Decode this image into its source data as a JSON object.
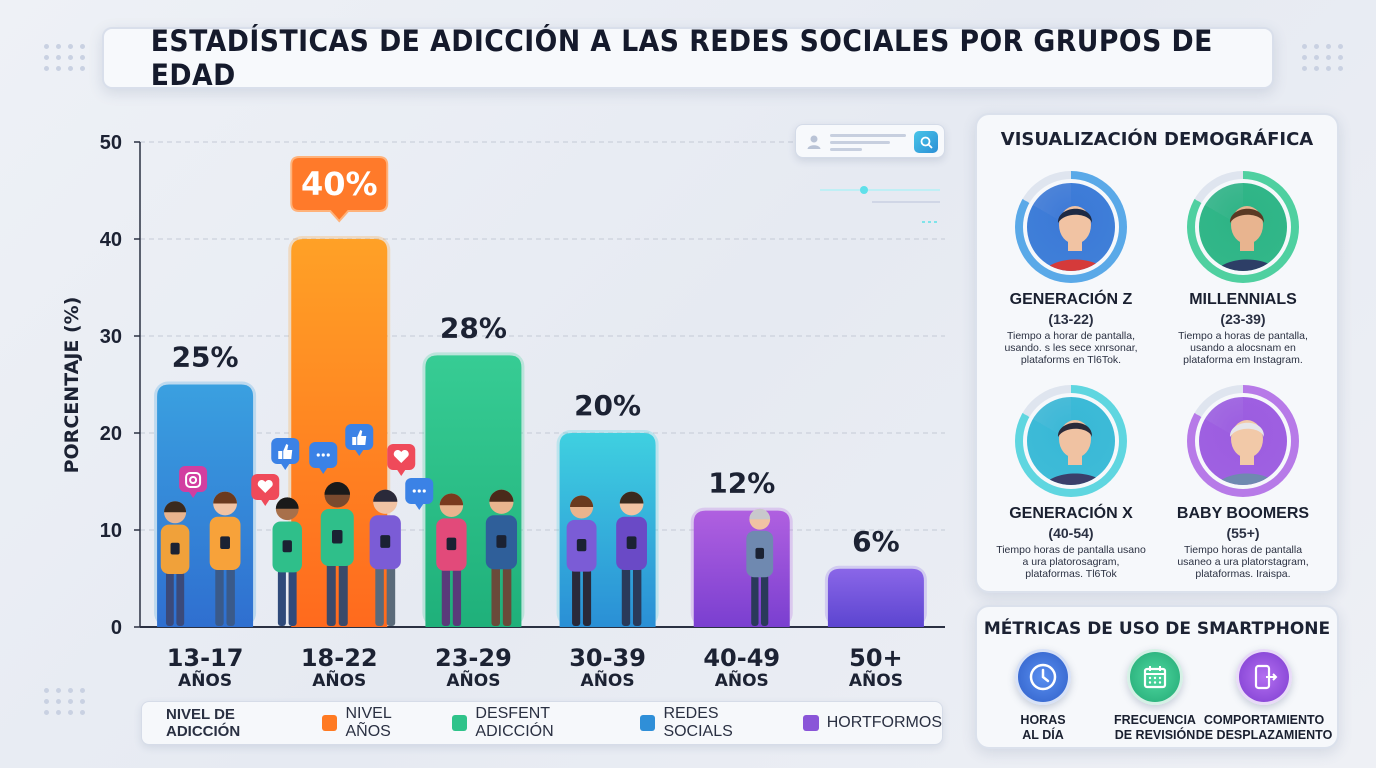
{
  "title": "ESTADÍSTICAS DE ADICCIÓN A LAS REDES SOCIALES POR GRUPOS DE EDAD",
  "chart_data": {
    "type": "bar",
    "ylabel": "PORCENTAJE (%)",
    "ylim": [
      0,
      50
    ],
    "yticks": [
      0,
      10,
      20,
      30,
      40,
      50
    ],
    "grid": true,
    "categories": [
      "13-17",
      "18-22",
      "23-29",
      "30-39",
      "40-49",
      "50+"
    ],
    "category_sublabel": "AÑOS",
    "values": [
      25,
      40,
      28,
      20,
      12,
      6
    ],
    "value_labels": [
      "25%",
      "40%",
      "28%",
      "20%",
      "12%",
      "6%"
    ],
    "highlight_index": 1,
    "bar_colors": [
      [
        "#3aa0e0",
        "#2f6fd0"
      ],
      [
        "#ffa126",
        "#ff6a1e"
      ],
      [
        "#37cc94",
        "#1fb07a"
      ],
      [
        "#3fd0e0",
        "#2a8fd6"
      ],
      [
        "#b060e0",
        "#7a3fd0"
      ],
      [
        "#8a66e8",
        "#5c45d0"
      ]
    ]
  },
  "legend": {
    "title": "NIVEL DE ADICCIÓN",
    "items": [
      {
        "label": "NIVEL AÑOS",
        "color": "#ff7a22"
      },
      {
        "label": "DESFENT ADICCIÓN",
        "color": "#2fc38a"
      },
      {
        "label": "REDES SOCIALS",
        "color": "#2f8fd8"
      },
      {
        "label": "HORTFORMOS",
        "color": "#8a55d8"
      }
    ]
  },
  "demographics": {
    "title": "VISUALIZACIÓN DEMOGRÁFICA",
    "groups": [
      {
        "name": "GENERACIÓN Z",
        "range": "(13-22)",
        "desc": "Tiempo a horar de pantalla, usando. s les sece xnrsonar, plataforms en Tl6Tok.",
        "ring": "#5aa9e8",
        "bg": "#3b78d6",
        "skin": "#f1c3a3",
        "hair": "#1e2a44",
        "shirt": "#d53a3a"
      },
      {
        "name": "MILLENNIALS",
        "range": "(23-39)",
        "desc": "Tiempo a horas de pantalla, usando a alocsnam en plataforma em Instagram.",
        "ring": "#4fd0a0",
        "bg": "#2db385",
        "skin": "#e8b48f",
        "hair": "#5a3a24",
        "shirt": "#2d3e66"
      },
      {
        "name": "GENERACIÓN X",
        "range": "(40-54)",
        "desc": "Tiempo horas de pantalla usano a ura platorosagram, plataformas. Tl6Tok",
        "ring": "#5fd6e0",
        "bg": "#38b7d6",
        "skin": "#f0c2a2",
        "hair": "#2a2a3a",
        "shirt": "#3a3f6a"
      },
      {
        "name": "BABY BOOMERS",
        "range": "(55+)",
        "desc": "Tiempo horas de pantalla usaneo a ura platorstagram, plataformas. Iraispa.",
        "ring": "#b77ae8",
        "bg": "#9b5ce0",
        "skin": "#f2c9a8",
        "hair": "#e6e6ea",
        "shirt": "#6f89b0"
      }
    ]
  },
  "metrics": {
    "title": "MÉTRICAS DE USO DE SMARTPHONE",
    "items": [
      {
        "label1": "HORAS",
        "label2": "AL DÍA",
        "icon": "clock-icon",
        "color": "#3a6fd6"
      },
      {
        "label1": "FRECUENCIA",
        "label2": "DE REVISIÓN",
        "icon": "calendar-icon",
        "color": "#2fbf86"
      },
      {
        "label1": "COMPORTAMIENTO",
        "label2": "DE DESPLAZAMIENTO",
        "icon": "phone-scroll-icon",
        "color": "#9b4fe0"
      }
    ]
  }
}
